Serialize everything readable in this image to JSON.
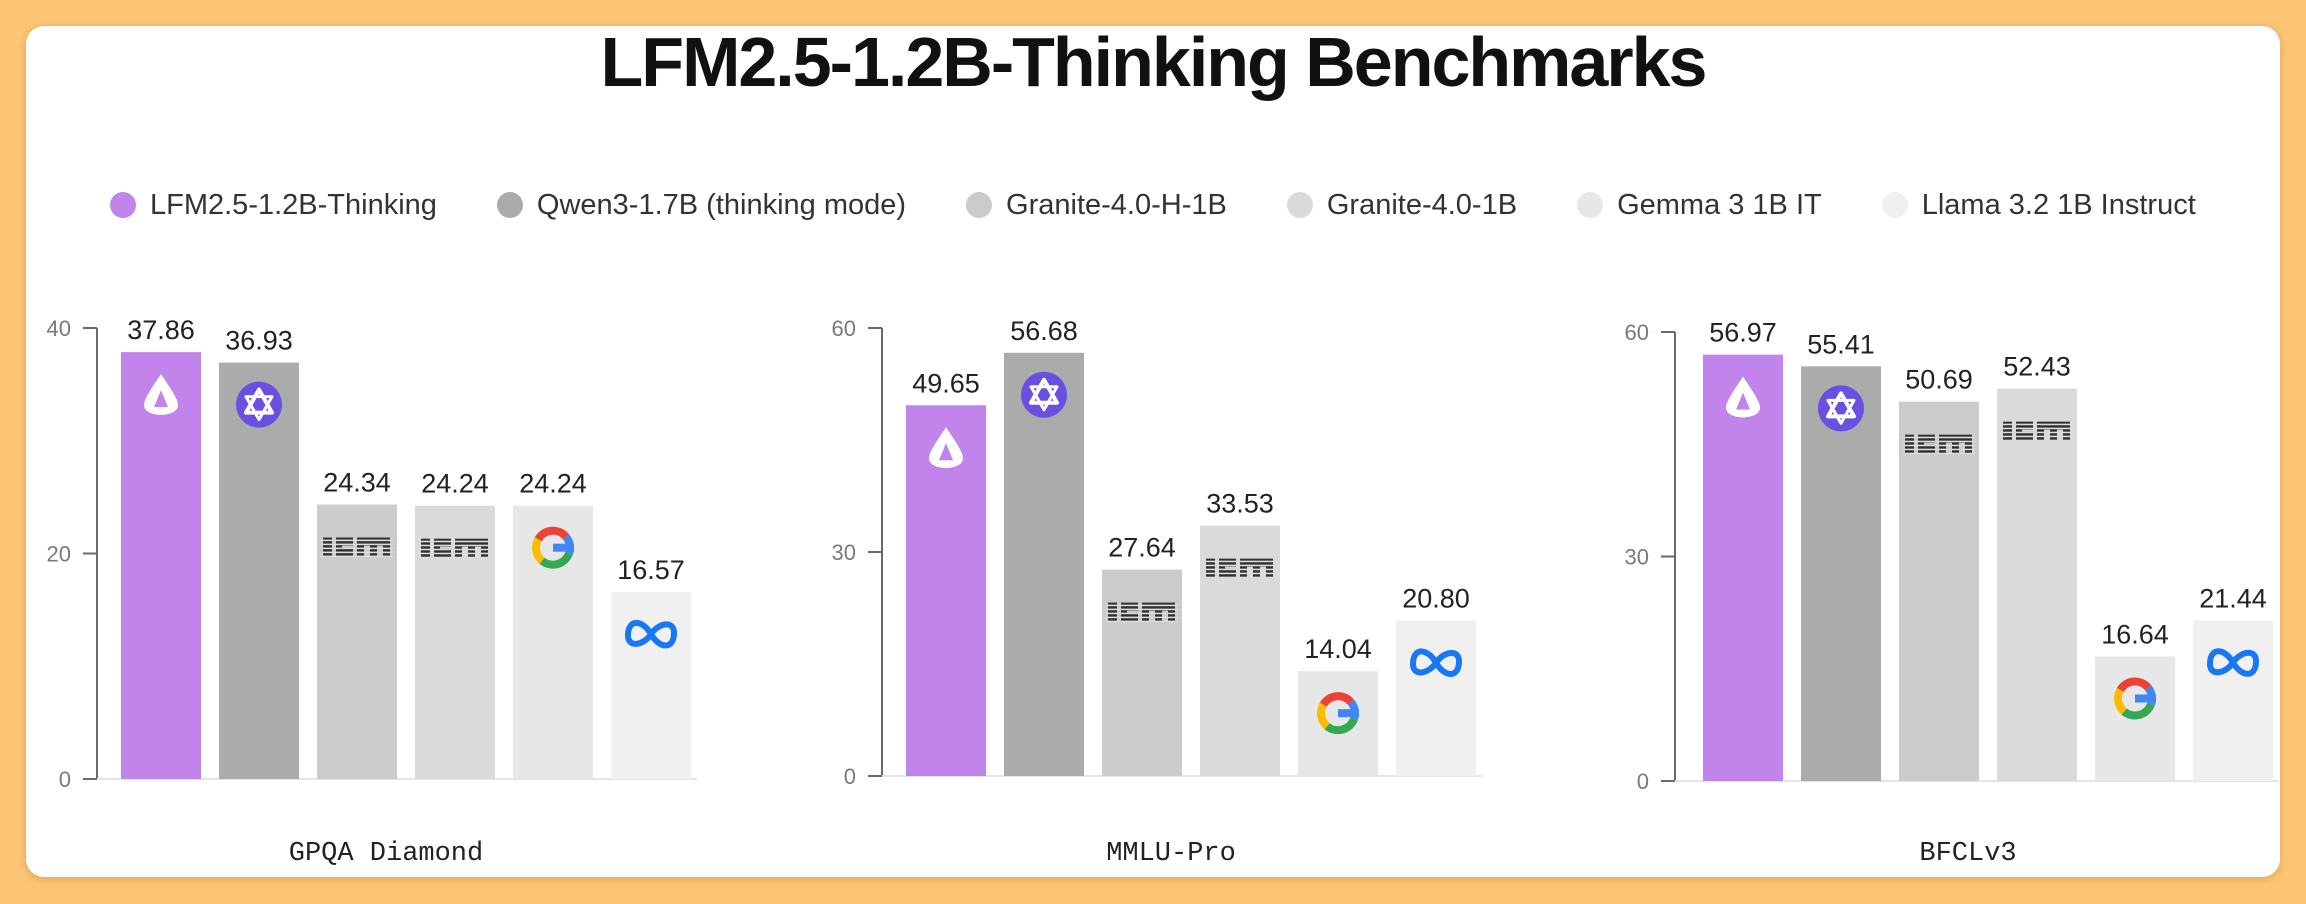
{
  "title": "LFM2.5-1.2B-Thinking Benchmarks",
  "colors": {
    "background": "#FDC676",
    "card": "#FFFFFF",
    "axis": "#6a6a6a"
  },
  "legend": [
    {
      "label": "LFM2.5-1.2B-Thinking",
      "color": "#C084EA",
      "icon": "liquid-logo-icon"
    },
    {
      "label": "Qwen3-1.7B (thinking mode)",
      "color": "#ABABAB",
      "icon": "qwen-logo-icon"
    },
    {
      "label": "Granite-4.0-H-1B",
      "color": "#CBCBCB",
      "icon": "ibm-logo-icon"
    },
    {
      "label": "Granite-4.0-1B",
      "color": "#DADADA",
      "icon": "ibm-logo-icon"
    },
    {
      "label": "Gemma 3 1B IT",
      "color": "#E7E7E7",
      "icon": "google-logo-icon"
    },
    {
      "label": "Llama 3.2 1B Instruct",
      "color": "#F0F0F0",
      "icon": "meta-logo-icon"
    }
  ],
  "chart_data": [
    {
      "type": "bar",
      "title": "GPQA Diamond",
      "categories": [
        "LFM2.5-1.2B-Thinking",
        "Qwen3-1.7B (thinking mode)",
        "Granite-4.0-H-1B",
        "Granite-4.0-1B",
        "Gemma 3 1B IT",
        "Llama 3.2 1B Instruct"
      ],
      "values": [
        37.86,
        36.93,
        24.34,
        24.24,
        24.24,
        16.57
      ],
      "value_labels": [
        "37.86",
        "36.93",
        "24.34",
        "24.24",
        "24.24",
        "16.57"
      ],
      "yticks": [
        "0",
        "20",
        "40"
      ],
      "ylim": [
        0,
        40
      ],
      "grid": false
    },
    {
      "type": "bar",
      "title": "MMLU-Pro",
      "categories": [
        "LFM2.5-1.2B-Thinking",
        "Qwen3-1.7B (thinking mode)",
        "Granite-4.0-H-1B",
        "Granite-4.0-1B",
        "Gemma 3 1B IT",
        "Llama 3.2 1B Instruct"
      ],
      "values": [
        49.65,
        56.68,
        27.64,
        33.53,
        14.04,
        20.8
      ],
      "value_labels": [
        "49.65",
        "56.68",
        "27.64",
        "33.53",
        "14.04",
        "20.80"
      ],
      "yticks": [
        "0",
        "30",
        "60"
      ],
      "ylim": [
        0,
        60
      ],
      "grid": false
    },
    {
      "type": "bar",
      "title": "BFCLv3",
      "categories": [
        "LFM2.5-1.2B-Thinking",
        "Qwen3-1.7B (thinking mode)",
        "Granite-4.0-H-1B",
        "Granite-4.0-1B",
        "Gemma 3 1B IT",
        "Llama 3.2 1B Instruct"
      ],
      "values": [
        56.97,
        55.41,
        50.69,
        52.43,
        16.64,
        21.44
      ],
      "value_labels": [
        "56.97",
        "55.41",
        "50.69",
        "52.43",
        "16.64",
        "21.44"
      ],
      "yticks": [
        "0",
        "30",
        "60"
      ],
      "ylim": [
        0,
        60
      ],
      "grid": false
    }
  ]
}
